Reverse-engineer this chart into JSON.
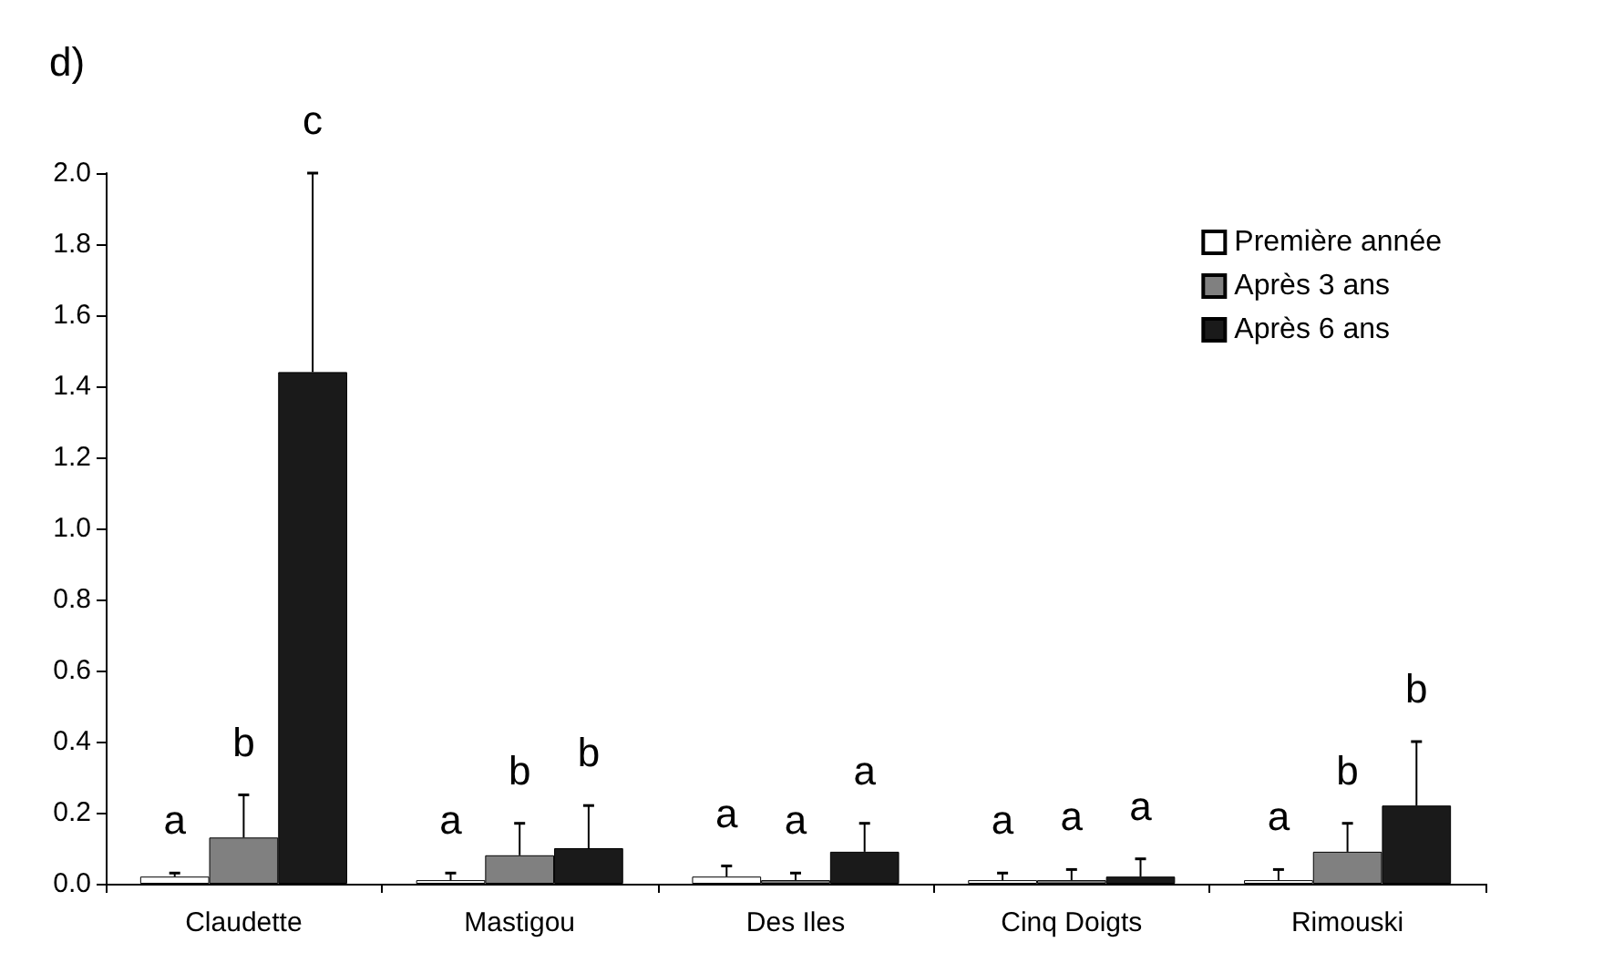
{
  "chart_data": {
    "type": "bar",
    "title": "d)",
    "categories": [
      "Claudette",
      "Mastigou",
      "Des Iles",
      "Cinq Doigts",
      "Rimouski"
    ],
    "series": [
      {
        "name": "Première année",
        "color": "#ffffff",
        "values": [
          0.02,
          0.01,
          0.02,
          0.01,
          0.01
        ],
        "errors": [
          [
            0.02,
            0.03
          ],
          [
            0.01,
            0.03
          ],
          [
            0.02,
            0.05
          ],
          [
            0.01,
            0.03
          ],
          [
            0.01,
            0.04
          ]
        ]
      },
      {
        "name": "Après 3 ans",
        "color": "#808080",
        "values": [
          0.13,
          0.08,
          0.01,
          0.01,
          0.09
        ],
        "errors": [
          [
            0.13,
            0.25
          ],
          [
            0.08,
            0.17
          ],
          [
            0.01,
            0.03
          ],
          [
            0.01,
            0.04
          ],
          [
            0.09,
            0.17
          ]
        ]
      },
      {
        "name": "Après 6 ans",
        "color": "#1a1a1a",
        "values": [
          1.44,
          0.1,
          0.09,
          0.02,
          0.22
        ],
        "errors": [
          [
            1.44,
            2.0
          ],
          [
            0.1,
            0.22
          ],
          [
            0.09,
            0.17
          ],
          [
            0.02,
            0.07
          ],
          [
            0.22,
            0.4
          ]
        ]
      }
    ],
    "annotations": [
      "a",
      "b",
      "c",
      "a",
      "b",
      "b",
      "a",
      "a",
      "a",
      "a",
      "a",
      "a",
      "a",
      "b",
      "b"
    ],
    "ylim": [
      0,
      2.0
    ],
    "yticks": [
      {
        "value": 0,
        "label": "0.0"
      },
      0.2,
      0.4,
      0.6,
      0.8,
      {
        "value": 1,
        "label": "1.0"
      },
      1.2,
      1.4,
      1.6,
      1.8,
      {
        "value": 2,
        "label": "2.0"
      }
    ],
    "grid": false,
    "legend": "top right"
  }
}
